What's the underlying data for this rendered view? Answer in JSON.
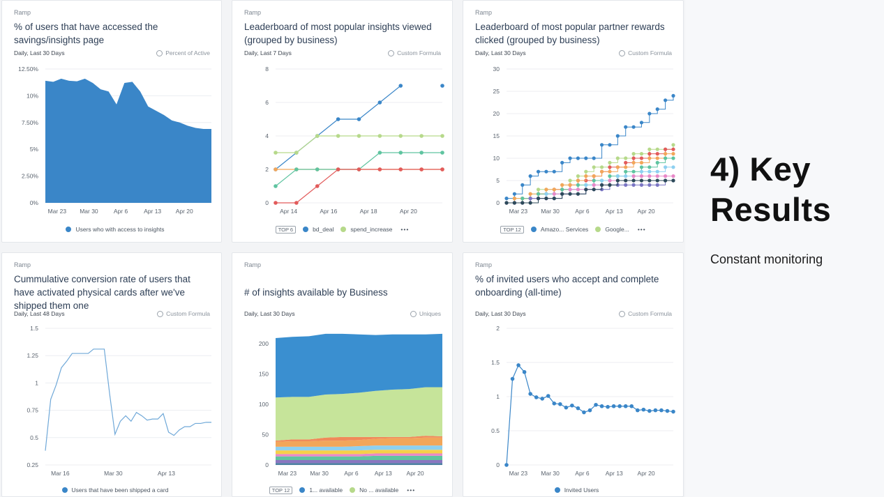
{
  "slide": {
    "headline": "4) Key Results",
    "subheadline": "Constant monitoring"
  },
  "cards": [
    {
      "brand": "Ramp",
      "title": "% of users that have accessed the savings/insights page",
      "range": "Daily, Last 30 Days",
      "metric": "Percent of Active",
      "legend": [
        {
          "label": "Users who with access to insights",
          "color": "#3a86c8"
        }
      ],
      "legend_top": "",
      "legend_more": ""
    },
    {
      "brand": "Ramp",
      "title": "Leaderboard of most popular insights viewed (grouped by business)",
      "range": "Daily, Last 7 Days",
      "metric": "Custom Formula",
      "legend": [
        {
          "label": "bd_deal",
          "color": "#3a86c8"
        },
        {
          "label": "spend_increase",
          "color": "#b6d98a"
        }
      ],
      "legend_top": "TOP 6",
      "legend_more": "•••"
    },
    {
      "brand": "Ramp",
      "title": "Leaderboard of most popular partner rewards clicked (grouped by business)",
      "range": "Daily, Last 30 Days",
      "metric": "Custom Formula",
      "legend": [
        {
          "label": "Amazo... Services",
          "color": "#3a86c8"
        },
        {
          "label": "Google...",
          "color": "#b6d98a"
        }
      ],
      "legend_top": "TOP 12",
      "legend_more": "•••"
    },
    {
      "brand": "Ramp",
      "title": "Cummulative conversion rate of users that have activated physical cards after we've shipped them one",
      "range": "Daily, Last 48 Days",
      "metric": "Custom Formula",
      "legend": [
        {
          "label": "Users that have been shipped a card",
          "color": "#3a86c8"
        }
      ],
      "legend_top": "",
      "legend_more": ""
    },
    {
      "brand": "Ramp",
      "title": "# of insights available by Business",
      "range": "Daily, Last 30 Days",
      "metric": "Uniques",
      "legend": [
        {
          "label": "1... available",
          "color": "#3a86c8"
        },
        {
          "label": "No ... available",
          "color": "#b6d98a"
        }
      ],
      "legend_top": "TOP 12",
      "legend_more": "•••"
    },
    {
      "brand": "Ramp",
      "title": "% of invited users who accept and complete onboarding (all-time)",
      "range": "Daily, Last 30 Days",
      "metric": "Custom Formula",
      "legend": [
        {
          "label": "Invited Users",
          "color": "#3a86c8"
        }
      ],
      "legend_top": "",
      "legend_more": ""
    }
  ],
  "chart_data": [
    {
      "type": "area",
      "title": "% of users that have accessed the savings/insights page",
      "yticks": [
        "0%",
        "2.50%",
        "5%",
        "7.50%",
        "10%",
        "12.50%"
      ],
      "ylim": [
        0,
        12.5
      ],
      "xticks": [
        "Mar 23",
        "Mar 30",
        "Apr 6",
        "Apr 13",
        "Apr 20"
      ],
      "series": [
        {
          "name": "Users who with access to insights",
          "color": "#3a86c8",
          "values": [
            11.4,
            11.3,
            11.6,
            11.4,
            11.35,
            11.6,
            11.2,
            10.6,
            10.4,
            9.2,
            11.2,
            11.3,
            10.4,
            9.0,
            8.6,
            8.2,
            7.7,
            7.5,
            7.2,
            7.0,
            6.9,
            6.9
          ]
        }
      ]
    },
    {
      "type": "line",
      "title": "Leaderboard of most popular insights viewed (grouped by business)",
      "yticks": [
        "0",
        "2",
        "4",
        "6",
        "8"
      ],
      "ylim": [
        0,
        8
      ],
      "xticks": [
        "Apr 14",
        "Apr 16",
        "Apr 18",
        "Apr 20"
      ],
      "series": [
        {
          "name": "bd_deal",
          "color": "#3a86c8",
          "values": [
            2,
            3,
            4,
            5,
            5,
            6,
            7,
            null,
            7
          ]
        },
        {
          "color": "#b6d98a",
          "values": [
            3,
            3,
            4,
            4,
            4,
            4,
            4,
            4,
            4
          ]
        },
        {
          "color": "#f2a65a",
          "values": [
            2,
            2,
            2,
            2,
            2,
            2,
            2,
            2,
            2
          ]
        },
        {
          "color": "#5fc4a0",
          "values": [
            1,
            2,
            2,
            2,
            2,
            3,
            3,
            3,
            3
          ]
        },
        {
          "color": "#e25b5b",
          "values": [
            0,
            0,
            1,
            2,
            2,
            2,
            2,
            2,
            2
          ]
        }
      ]
    },
    {
      "type": "line",
      "title": "Leaderboard of most popular partner rewards clicked (grouped by business)",
      "yticks": [
        "0",
        "5",
        "10",
        "15",
        "20",
        "25",
        "30"
      ],
      "ylim": [
        0,
        30
      ],
      "xticks": [
        "Mar 23",
        "Mar 30",
        "Apr 6",
        "Apr 13",
        "Apr 20"
      ],
      "series": [
        {
          "name": "Amazo... Services",
          "color": "#3a86c8",
          "values": [
            1,
            2,
            4,
            6,
            7,
            7,
            7,
            9,
            10,
            10,
            10,
            10,
            13,
            13,
            15,
            17,
            17,
            18,
            20,
            21,
            23,
            24
          ]
        },
        {
          "name": "Google...",
          "color": "#b6d98a",
          "values": [
            0,
            1,
            1,
            2,
            3,
            3,
            3,
            4,
            5,
            6,
            7,
            8,
            8,
            9,
            10,
            10,
            11,
            11,
            12,
            12,
            12,
            13
          ]
        },
        {
          "color": "#e25b5b",
          "values": [
            0,
            0,
            1,
            1,
            2,
            2,
            3,
            3,
            4,
            5,
            5,
            6,
            7,
            8,
            8,
            9,
            10,
            10,
            11,
            11,
            12,
            12
          ]
        },
        {
          "color": "#f2a65a",
          "values": [
            0,
            1,
            1,
            2,
            2,
            3,
            3,
            4,
            4,
            5,
            6,
            6,
            7,
            7,
            8,
            8,
            9,
            9,
            10,
            10,
            11,
            11
          ]
        },
        {
          "color": "#5fc4a0",
          "values": [
            0,
            0,
            1,
            1,
            2,
            2,
            2,
            3,
            3,
            4,
            4,
            5,
            5,
            6,
            6,
            7,
            7,
            8,
            8,
            9,
            10,
            10
          ]
        },
        {
          "color": "#8ed0f0",
          "values": [
            0,
            0,
            0,
            1,
            1,
            2,
            2,
            2,
            3,
            3,
            4,
            4,
            5,
            5,
            6,
            6,
            6,
            7,
            7,
            7,
            8,
            8
          ]
        },
        {
          "color": "#e889c8",
          "values": [
            0,
            0,
            0,
            1,
            1,
            1,
            2,
            2,
            3,
            3,
            3,
            4,
            4,
            5,
            5,
            5,
            6,
            6,
            6,
            6,
            6,
            6
          ]
        },
        {
          "color": "#7b76c4",
          "values": [
            0,
            0,
            0,
            1,
            1,
            1,
            1,
            2,
            2,
            2,
            3,
            3,
            3,
            4,
            4,
            4,
            4,
            4,
            4,
            4,
            5,
            5
          ]
        },
        {
          "color": "#2d4a5a",
          "values": [
            0,
            0,
            0,
            0,
            1,
            1,
            1,
            2,
            2,
            2,
            3,
            3,
            4,
            4,
            5,
            5,
            5,
            5,
            5,
            5,
            5,
            5
          ]
        }
      ]
    },
    {
      "type": "line",
      "title": "Cummulative conversion rate of users that have activated physical cards after we've shipped them one",
      "yticks": [
        "0.25",
        "0.5",
        "0.75",
        "1",
        "1.25",
        "1.5"
      ],
      "ylim": [
        0.25,
        1.5
      ],
      "xticks": [
        "Mar 16",
        "Mar 30",
        "Apr 13"
      ],
      "series": [
        {
          "name": "Users that have been shipped a card",
          "color": "#6fa8d8",
          "values": [
            0.38,
            0.85,
            0.98,
            1.14,
            1.2,
            1.27,
            1.27,
            1.27,
            1.27,
            1.31,
            1.31,
            1.31,
            0.9,
            0.53,
            0.65,
            0.7,
            0.65,
            0.73,
            0.7,
            0.66,
            0.67,
            0.67,
            0.72,
            0.55,
            0.52,
            0.57,
            0.6,
            0.6,
            0.63,
            0.63,
            0.64,
            0.64
          ]
        }
      ]
    },
    {
      "type": "area",
      "title": "# of insights available by Business",
      "yticks": [
        "0",
        "50",
        "100",
        "150",
        "200"
      ],
      "ylim": [
        0,
        225
      ],
      "xticks": [
        "Mar 23",
        "Mar 30",
        "Apr 6",
        "Apr 13",
        "Apr 20"
      ],
      "series": [
        {
          "color": "#4a7fa0",
          "values": [
            3,
            3,
            3,
            3,
            3,
            3,
            3,
            3,
            3,
            3,
            3
          ]
        },
        {
          "color": "#8a76c0",
          "values": [
            5,
            5,
            5,
            5,
            5,
            5,
            5,
            5,
            5,
            5,
            5
          ]
        },
        {
          "color": "#5fc4a0",
          "values": [
            6,
            6,
            6,
            6,
            6,
            6,
            7,
            7,
            7,
            7,
            7
          ]
        },
        {
          "color": "#e889c8",
          "values": [
            4,
            4,
            4,
            4,
            4,
            4,
            4,
            4,
            4,
            4,
            4
          ]
        },
        {
          "color": "#f5d04a",
          "values": [
            6,
            6,
            6,
            6,
            6,
            6,
            6,
            6,
            6,
            6,
            6
          ]
        },
        {
          "color": "#8ed0f0",
          "values": [
            6,
            6,
            6,
            6,
            6,
            7,
            7,
            7,
            7,
            7,
            7
          ]
        },
        {
          "color": "#f2a65a",
          "values": [
            8,
            9,
            9,
            10,
            10,
            10,
            11,
            12,
            12,
            13,
            13
          ]
        },
        {
          "color": "#f08a5a",
          "values": [
            2,
            3,
            3,
            5,
            6,
            5,
            3,
            2,
            2,
            3,
            2
          ]
        },
        {
          "name": "No ... available",
          "color": "#c6e49a",
          "values": [
            71,
            70,
            70,
            71,
            71,
            73,
            76,
            78,
            79,
            80,
            81
          ]
        },
        {
          "name": "1... available",
          "color": "#3a8fd0",
          "values": [
            98,
            99,
            100,
            100,
            99,
            96,
            92,
            91,
            90,
            87,
            88
          ]
        }
      ]
    },
    {
      "type": "line",
      "title": "% of invited users who accept and complete onboarding (all-time)",
      "yticks": [
        "0",
        "0.5",
        "1",
        "1.5",
        "2"
      ],
      "ylim": [
        0,
        2
      ],
      "xticks": [
        "Mar 23",
        "Mar 30",
        "Apr 6",
        "Apr 13",
        "Apr 20"
      ],
      "series": [
        {
          "name": "Invited Users",
          "color": "#3a86c8",
          "values": [
            0,
            1.26,
            1.46,
            1.36,
            1.04,
            0.99,
            0.97,
            1.01,
            0.9,
            0.89,
            0.84,
            0.87,
            0.83,
            0.77,
            0.8,
            0.88,
            0.86,
            0.85,
            0.86,
            0.86,
            0.86,
            0.86,
            0.8,
            0.81,
            0.79,
            0.8,
            0.8,
            0.79,
            0.78
          ]
        }
      ]
    }
  ]
}
